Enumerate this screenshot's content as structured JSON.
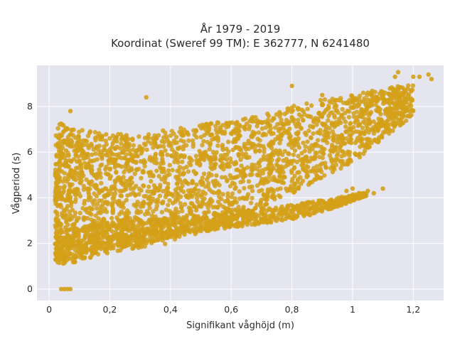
{
  "chart_data": {
    "type": "scatter",
    "title_line1": "År 1979 - 2019",
    "title_line2": "Koordinat (Sweref 99 TM): E 362777, N 6241480",
    "xlabel": "Signifikant våghöjd (m)",
    "ylabel": "Vågperiod (s)",
    "xlim": [
      -0.04,
      1.3
    ],
    "ylim": [
      -0.5,
      9.8
    ],
    "x_ticks": [
      0,
      0.2,
      0.4,
      0.6,
      0.8,
      1,
      1.2
    ],
    "x_tick_labels": [
      "0",
      "0,2",
      "0,4",
      "0,6",
      "0,8",
      "1",
      "1,2"
    ],
    "y_ticks": [
      0,
      2,
      4,
      6,
      8
    ],
    "y_tick_labels": [
      "0",
      "2",
      "4",
      "6",
      "8"
    ],
    "grid": true,
    "marker_color": "#d4a017",
    "plot_background": "#e5e5f0",
    "series": [
      {
        "points": [
          [
            0.04,
            0
          ],
          [
            0.05,
            0
          ],
          [
            0.06,
            0
          ],
          [
            0.07,
            0
          ],
          [
            0.07,
            7.8
          ],
          [
            0.32,
            8.4
          ],
          [
            0.8,
            8.9
          ],
          [
            0.9,
            8.5
          ],
          [
            1.05,
            8.6
          ],
          [
            1.15,
            9.5
          ],
          [
            1.14,
            9.3
          ],
          [
            1.2,
            9.3
          ],
          [
            1.22,
            9.3
          ],
          [
            1.25,
            9.4
          ],
          [
            1.26,
            9.2
          ],
          [
            0.98,
            4.3
          ],
          [
            1.0,
            4.4
          ],
          [
            1.05,
            4.3
          ],
          [
            1.1,
            4.4
          ],
          [
            1.07,
            4.2
          ],
          [
            0.82,
            4.8
          ],
          [
            0.85,
            5.0
          ],
          [
            0.9,
            5.5
          ]
        ]
      }
    ],
    "density_bands": [
      {
        "x": [
          0.02,
          0.04,
          0.1,
          0.2,
          0.3,
          0.4,
          0.5,
          0.6,
          0.7,
          0.8,
          0.9,
          1.0,
          1.1,
          1.2
        ],
        "y_low": [
          1.2,
          1.1,
          1.2,
          1.6,
          1.8,
          2.0,
          2.5,
          3.0,
          3.6,
          4.2,
          4.8,
          5.5,
          6.6,
          7.6
        ],
        "y_high": [
          7.0,
          7.3,
          7.0,
          6.8,
          6.8,
          7.0,
          7.2,
          7.4,
          7.6,
          8.0,
          8.3,
          8.5,
          8.8,
          9.0
        ]
      },
      {
        "x": [
          0.02,
          0.05,
          0.15,
          0.3,
          0.45,
          0.6,
          0.75,
          0.85,
          0.95,
          1.05
        ],
        "y_low": [
          1.2,
          1.1,
          1.5,
          2.0,
          2.4,
          2.7,
          2.9,
          3.2,
          3.6,
          4.1
        ],
        "y_high": [
          2.5,
          2.7,
          2.8,
          3.0,
          3.2,
          3.4,
          3.6,
          3.8,
          4.0,
          4.3
        ]
      }
    ]
  }
}
